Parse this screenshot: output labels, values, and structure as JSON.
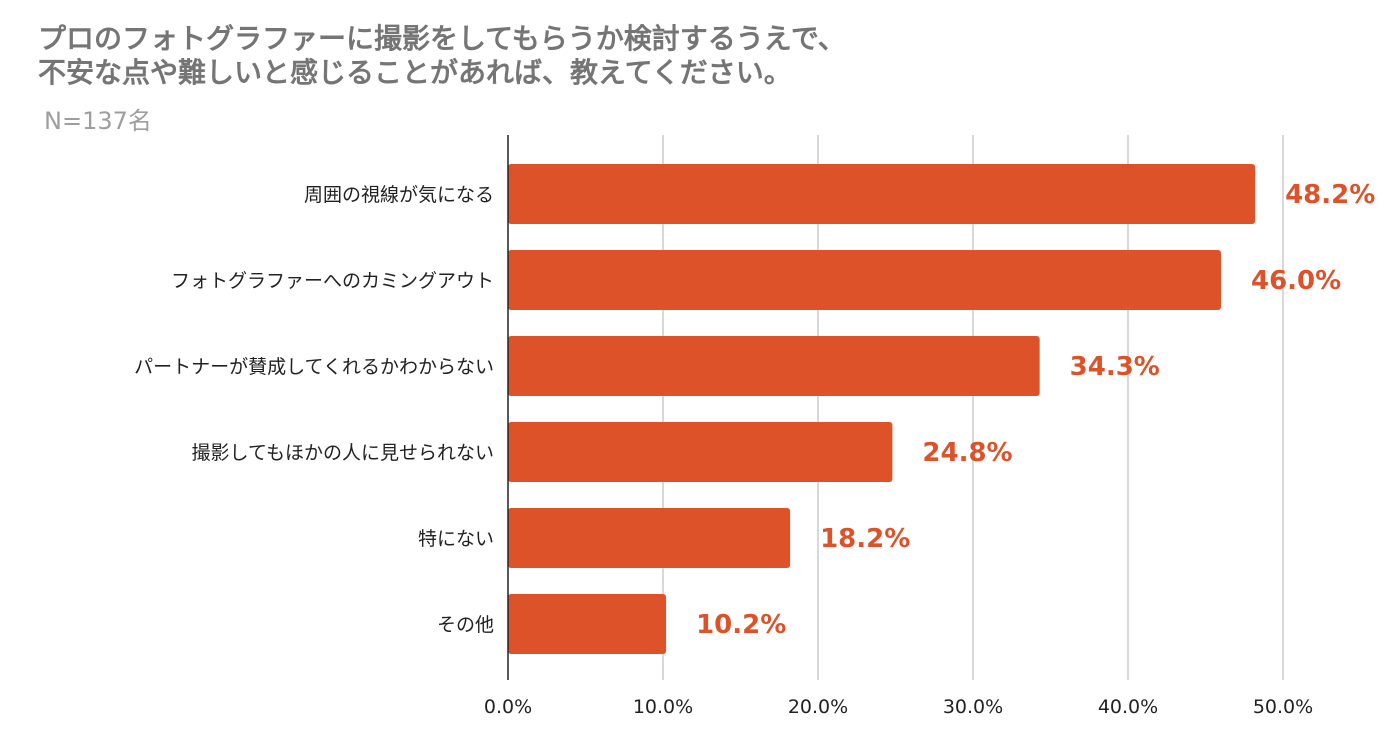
{
  "chart_data": {
    "type": "bar",
    "orientation": "horizontal",
    "title_lines": [
      "プロのフォトグラファーに撮影をしてもらうか検討するうえで、",
      "不安な点や難しいと感じることがあれば、教えてください。"
    ],
    "subtitle": "N=137名",
    "categories": [
      "周囲の視線が気になる",
      "フォトグラファーへのカミングアウト",
      "パートナーが賛成してくれるかわからない",
      "撮影してもほかの人に見せられない",
      "特にない",
      "その他"
    ],
    "values": [
      48.2,
      46.0,
      34.3,
      24.8,
      18.2,
      10.2
    ],
    "value_labels": [
      "48.2%",
      "46.0%",
      "34.3%",
      "24.8%",
      "18.2%",
      "10.2%"
    ],
    "xlim": [
      0,
      50
    ],
    "xticks": [
      0,
      10,
      20,
      30,
      40,
      50
    ],
    "xtick_labels": [
      "0.0%",
      "10.0%",
      "20.0%",
      "30.0%",
      "40.0%",
      "50.0%"
    ],
    "xlabel": "",
    "ylabel": "",
    "grid": true,
    "legend": "none",
    "colors": {
      "bar": "#DD5229",
      "label": "#DD5229",
      "grid": "#cccccc",
      "axis": "#222222"
    }
  }
}
